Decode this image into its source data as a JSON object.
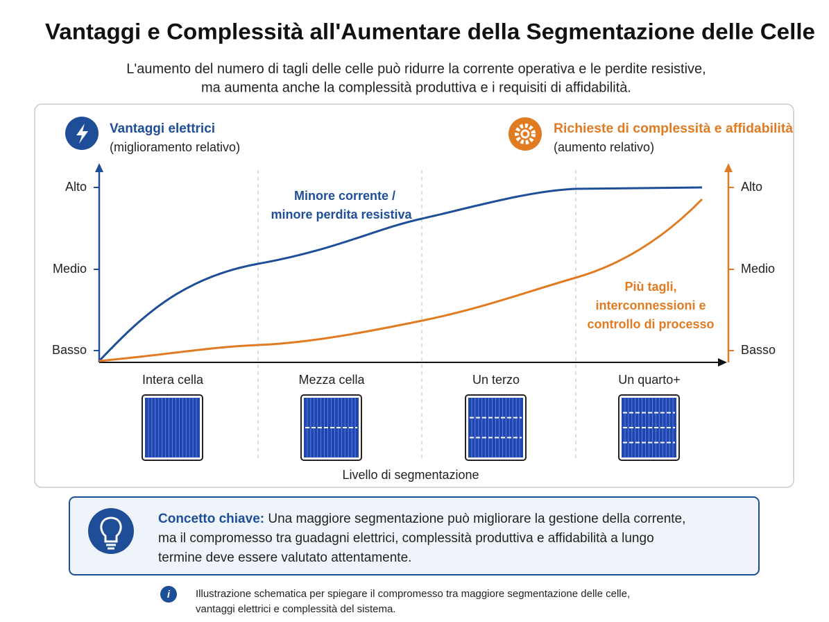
{
  "header": {
    "title": "Vantaggi e Complessità all'Aumentare della Segmentazione delle Celle",
    "subtitle_lines": [
      "L'aumento del numero di tagli delle celle può ridurre la corrente operativa e le perdite resistive,",
      "ma aumenta anche la complessità produttiva e i requisiti di affidabilità."
    ]
  },
  "left_axis": {
    "title": "Vantaggi elettrici",
    "subtitle": "(miglioramento relativo)",
    "ticks": [
      "Alto",
      "Medio",
      "Basso"
    ]
  },
  "right_axis": {
    "title": "Richieste di complessità e affidabilità",
    "subtitle": "(aumento relativo)",
    "ticks": [
      "Alto",
      "Medio",
      "Basso"
    ]
  },
  "blue_annotation": [
    "Minore corrente /",
    "minore perdita resistiva"
  ],
  "orange_annotation": [
    "Più tagli,",
    "interconnessioni e",
    "controllo di processo"
  ],
  "categories": [
    "Intera cella",
    "Mezza cella",
    "Un terzo",
    "Un quarto+"
  ],
  "x_axis_label": "Livello di segmentazione",
  "key_concept": {
    "label": "Concetto chiave:",
    "lines": [
      "Una maggiore segmentazione può migliorare la gestione della corrente,",
      "ma il compromesso tra guadagni elettrici, complessità produttiva e affidabilità a lungo",
      "termine deve essere valutato attentamente."
    ]
  },
  "footnote": {
    "lines": [
      "Illustrazione schematica per spiegare il compromesso tra maggiore segmentazione delle celle,",
      "vantaggi elettrici e complessità del sistema."
    ]
  }
}
